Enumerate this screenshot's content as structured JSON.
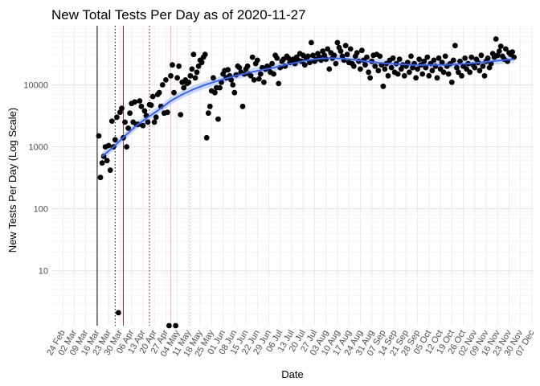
{
  "chart_data": {
    "type": "scatter",
    "title": "New Total Tests Per Day as of 2020-11-27",
    "xlabel": "Date",
    "ylabel": "New Tests Per Day (Log Scale)",
    "y_scale": "log10",
    "ylim": [
      1.3,
      90000
    ],
    "y_ticks": [
      {
        "value": 10,
        "label": "10"
      },
      {
        "value": 100,
        "label": "100"
      },
      {
        "value": 1000,
        "label": "1000"
      },
      {
        "value": 10000,
        "label": "10000"
      }
    ],
    "x_range": [
      "2020-02-17",
      "2020-12-08"
    ],
    "x_ticks": [
      {
        "date": "2020-02-24",
        "label": "24 Feb"
      },
      {
        "date": "2020-03-02",
        "label": "02 Mar"
      },
      {
        "date": "2020-03-09",
        "label": "09 Mar"
      },
      {
        "date": "2020-03-16",
        "label": "16 Mar"
      },
      {
        "date": "2020-03-23",
        "label": "23 Mar"
      },
      {
        "date": "2020-03-30",
        "label": "30 Mar"
      },
      {
        "date": "2020-04-06",
        "label": "06 Apr"
      },
      {
        "date": "2020-04-13",
        "label": "13 Apr"
      },
      {
        "date": "2020-04-20",
        "label": "20 Apr"
      },
      {
        "date": "2020-04-27",
        "label": "27 Apr"
      },
      {
        "date": "2020-05-04",
        "label": "04 May"
      },
      {
        "date": "2020-05-11",
        "label": "11 May"
      },
      {
        "date": "2020-05-18",
        "label": "18 May"
      },
      {
        "date": "2020-05-25",
        "label": "25 May"
      },
      {
        "date": "2020-06-01",
        "label": "01 Jun"
      },
      {
        "date": "2020-06-08",
        "label": "08 Jun"
      },
      {
        "date": "2020-06-15",
        "label": "15 Jun"
      },
      {
        "date": "2020-06-22",
        "label": "22 Jun"
      },
      {
        "date": "2020-06-29",
        "label": "29 Jun"
      },
      {
        "date": "2020-07-06",
        "label": "06 Jul"
      },
      {
        "date": "2020-07-13",
        "label": "13 Jul"
      },
      {
        "date": "2020-07-20",
        "label": "20 Jul"
      },
      {
        "date": "2020-07-27",
        "label": "27 Jul"
      },
      {
        "date": "2020-08-03",
        "label": "03 Aug"
      },
      {
        "date": "2020-08-10",
        "label": "10 Aug"
      },
      {
        "date": "2020-08-17",
        "label": "17 Aug"
      },
      {
        "date": "2020-08-24",
        "label": "24 Aug"
      },
      {
        "date": "2020-08-31",
        "label": "31 Aug"
      },
      {
        "date": "2020-09-07",
        "label": "07 Sep"
      },
      {
        "date": "2020-09-14",
        "label": "14 Sep"
      },
      {
        "date": "2020-09-21",
        "label": "21 Sep"
      },
      {
        "date": "2020-09-28",
        "label": "28 Sep"
      },
      {
        "date": "2020-10-05",
        "label": "05 Oct"
      },
      {
        "date": "2020-10-12",
        "label": "12 Oct"
      },
      {
        "date": "2020-10-19",
        "label": "19 Oct"
      },
      {
        "date": "2020-10-26",
        "label": "26 Oct"
      },
      {
        "date": "2020-11-02",
        "label": "02 Nov"
      },
      {
        "date": "2020-11-09",
        "label": "09 Nov"
      },
      {
        "date": "2020-11-16",
        "label": "16 Nov"
      },
      {
        "date": "2020-11-23",
        "label": "23 Nov"
      },
      {
        "date": "2020-11-30",
        "label": "30 Nov"
      },
      {
        "date": "2020-12-07",
        "label": "07 Dec"
      }
    ],
    "grid": true,
    "legend": "none",
    "vlines": [
      {
        "date": "2020-03-16",
        "style": "solid",
        "color": "#000000"
      },
      {
        "date": "2020-03-27",
        "style": "dotted",
        "color": "#000000"
      },
      {
        "date": "2020-04-01",
        "style": "solid",
        "color": "#b22222"
      },
      {
        "date": "2020-04-17",
        "style": "dotted",
        "color": "#8b0000"
      },
      {
        "date": "2020-04-30",
        "style": "solid",
        "color": "#ffb6c1"
      },
      {
        "date": "2020-05-12",
        "style": "dotted",
        "color": "#ff9999"
      }
    ],
    "points_color": "#000000",
    "smooth_color": "#3366ff",
    "smooth_band_color": "#a8b8f0",
    "smooth": [
      [
        "2020-03-19",
        700
      ],
      [
        "2020-03-26",
        1000
      ],
      [
        "2020-04-02",
        1500
      ],
      [
        "2020-04-09",
        2200
      ],
      [
        "2020-04-16",
        3000
      ],
      [
        "2020-04-23",
        4000
      ],
      [
        "2020-04-30",
        5500
      ],
      [
        "2020-05-07",
        7000
      ],
      [
        "2020-05-14",
        8500
      ],
      [
        "2020-05-21",
        10000
      ],
      [
        "2020-05-28",
        11500
      ],
      [
        "2020-06-04",
        13000
      ],
      [
        "2020-06-11",
        14500
      ],
      [
        "2020-06-18",
        16000
      ],
      [
        "2020-06-25",
        17500
      ],
      [
        "2020-07-02",
        19000
      ],
      [
        "2020-07-09",
        21000
      ],
      [
        "2020-07-16",
        23000
      ],
      [
        "2020-07-23",
        25000
      ],
      [
        "2020-07-30",
        26500
      ],
      [
        "2020-08-06",
        27000
      ],
      [
        "2020-08-13",
        26500
      ],
      [
        "2020-08-20",
        25500
      ],
      [
        "2020-08-27",
        24000
      ],
      [
        "2020-09-03",
        23000
      ],
      [
        "2020-09-10",
        22000
      ],
      [
        "2020-09-17",
        21500
      ],
      [
        "2020-09-24",
        21000
      ],
      [
        "2020-10-01",
        21000
      ],
      [
        "2020-10-08",
        21000
      ],
      [
        "2020-10-15",
        21000
      ],
      [
        "2020-10-22",
        21500
      ],
      [
        "2020-10-29",
        22000
      ],
      [
        "2020-11-05",
        23000
      ],
      [
        "2020-11-12",
        24000
      ],
      [
        "2020-11-19",
        25000
      ],
      [
        "2020-11-26",
        26000
      ]
    ],
    "points": [
      [
        "2020-03-17",
        1500
      ],
      [
        "2020-03-18",
        320
      ],
      [
        "2020-03-19",
        550
      ],
      [
        "2020-03-20",
        700
      ],
      [
        "2020-03-21",
        1000
      ],
      [
        "2020-03-22",
        600
      ],
      [
        "2020-03-23",
        1050
      ],
      [
        "2020-03-24",
        420
      ],
      [
        "2020-03-25",
        2600
      ],
      [
        "2020-03-26",
        1000
      ],
      [
        "2020-03-27",
        1300
      ],
      [
        "2020-03-28",
        3000
      ],
      [
        "2020-03-29",
        2.1
      ],
      [
        "2020-03-30",
        3600
      ],
      [
        "2020-03-31",
        4200
      ],
      [
        "2020-04-01",
        1400
      ],
      [
        "2020-04-02",
        2500
      ],
      [
        "2020-04-03",
        1000
      ],
      [
        "2020-04-04",
        2000
      ],
      [
        "2020-04-05",
        3500
      ],
      [
        "2020-04-06",
        5000
      ],
      [
        "2020-04-07",
        2500
      ],
      [
        "2020-04-08",
        5300
      ],
      [
        "2020-04-09",
        2300
      ],
      [
        "2020-04-10",
        2300
      ],
      [
        "2020-04-11",
        5500
      ],
      [
        "2020-04-12",
        4500
      ],
      [
        "2020-04-13",
        2200
      ],
      [
        "2020-04-14",
        3800
      ],
      [
        "2020-04-15",
        3200
      ],
      [
        "2020-04-16",
        2500
      ],
      [
        "2020-04-17",
        4800
      ],
      [
        "2020-04-18",
        4700
      ],
      [
        "2020-04-19",
        6500
      ],
      [
        "2020-04-20",
        2500
      ],
      [
        "2020-04-21",
        3000
      ],
      [
        "2020-04-22",
        7000
      ],
      [
        "2020-04-23",
        7500
      ],
      [
        "2020-04-24",
        4500
      ],
      [
        "2020-04-25",
        10000
      ],
      [
        "2020-04-26",
        3500
      ],
      [
        "2020-04-27",
        12000
      ],
      [
        "2020-04-28",
        3600
      ],
      [
        "2020-04-29",
        1.3
      ],
      [
        "2020-04-30",
        14000
      ],
      [
        "2020-05-01",
        21000
      ],
      [
        "2020-05-02",
        7500
      ],
      [
        "2020-05-03",
        1.3
      ],
      [
        "2020-05-04",
        13000
      ],
      [
        "2020-05-05",
        20000
      ],
      [
        "2020-05-06",
        3300
      ],
      [
        "2020-05-07",
        11000
      ],
      [
        "2020-05-08",
        9000
      ],
      [
        "2020-05-09",
        12000
      ],
      [
        "2020-05-10",
        10500
      ],
      [
        "2020-05-11",
        11000
      ],
      [
        "2020-05-12",
        14000
      ],
      [
        "2020-05-13",
        18000
      ],
      [
        "2020-05-14",
        31000
      ],
      [
        "2020-05-15",
        13000
      ],
      [
        "2020-05-16",
        16000
      ],
      [
        "2020-05-17",
        20000
      ],
      [
        "2020-05-18",
        25000
      ],
      [
        "2020-05-19",
        23000
      ],
      [
        "2020-05-20",
        28000
      ],
      [
        "2020-05-21",
        31000
      ],
      [
        "2020-05-22",
        1400
      ],
      [
        "2020-05-23",
        3500
      ],
      [
        "2020-05-24",
        4500
      ],
      [
        "2020-05-25",
        8000
      ],
      [
        "2020-05-26",
        13000
      ],
      [
        "2020-05-27",
        7500
      ],
      [
        "2020-05-28",
        9000
      ],
      [
        "2020-05-29",
        2800
      ],
      [
        "2020-05-30",
        9000
      ],
      [
        "2020-05-31",
        11000
      ],
      [
        "2020-06-01",
        15000
      ],
      [
        "2020-06-02",
        17000
      ],
      [
        "2020-06-03",
        13000
      ],
      [
        "2020-06-04",
        17500
      ],
      [
        "2020-06-05",
        14000
      ],
      [
        "2020-06-06",
        12000
      ],
      [
        "2020-06-07",
        10000
      ],
      [
        "2020-06-08",
        7500
      ],
      [
        "2020-06-09",
        14500
      ],
      [
        "2020-06-10",
        20000
      ],
      [
        "2020-06-11",
        19000
      ],
      [
        "2020-06-12",
        16000
      ],
      [
        "2020-06-13",
        4500
      ],
      [
        "2020-06-14",
        15000
      ],
      [
        "2020-06-15",
        18000
      ],
      [
        "2020-06-16",
        20000
      ],
      [
        "2020-06-17",
        15000
      ],
      [
        "2020-06-18",
        14000
      ],
      [
        "2020-06-19",
        28000
      ],
      [
        "2020-06-20",
        12000
      ],
      [
        "2020-06-21",
        22000
      ],
      [
        "2020-06-22",
        25000
      ],
      [
        "2020-06-23",
        12500
      ],
      [
        "2020-06-24",
        15000
      ],
      [
        "2020-06-25",
        19000
      ],
      [
        "2020-06-26",
        11000
      ],
      [
        "2020-06-27",
        18000
      ],
      [
        "2020-06-28",
        20000
      ],
      [
        "2020-06-29",
        19000
      ],
      [
        "2020-06-30",
        16000
      ],
      [
        "2020-07-01",
        22000
      ],
      [
        "2020-07-02",
        15000
      ],
      [
        "2020-07-03",
        30000
      ],
      [
        "2020-07-04",
        27000
      ],
      [
        "2020-07-05",
        10500
      ],
      [
        "2020-07-06",
        19000
      ],
      [
        "2020-07-07",
        24000
      ],
      [
        "2020-07-08",
        26000
      ],
      [
        "2020-07-09",
        20000
      ],
      [
        "2020-07-10",
        29000
      ],
      [
        "2020-07-11",
        27000
      ],
      [
        "2020-07-12",
        23000
      ],
      [
        "2020-07-13",
        25000
      ],
      [
        "2020-07-14",
        26000
      ],
      [
        "2020-07-15",
        22000
      ],
      [
        "2020-07-16",
        28000
      ],
      [
        "2020-07-17",
        25000
      ],
      [
        "2020-07-18",
        32000
      ],
      [
        "2020-07-19",
        24000
      ],
      [
        "2020-07-20",
        30000
      ],
      [
        "2020-07-21",
        21000
      ],
      [
        "2020-07-22",
        27000
      ],
      [
        "2020-07-23",
        29000
      ],
      [
        "2020-07-24",
        23000
      ],
      [
        "2020-07-25",
        48000
      ],
      [
        "2020-07-26",
        30000
      ],
      [
        "2020-07-27",
        24000
      ],
      [
        "2020-07-28",
        26000
      ],
      [
        "2020-07-29",
        32000
      ],
      [
        "2020-07-30",
        28000
      ],
      [
        "2020-07-31",
        25000
      ],
      [
        "2020-08-01",
        35000
      ],
      [
        "2020-08-02",
        30000
      ],
      [
        "2020-08-03",
        26000
      ],
      [
        "2020-08-04",
        38000
      ],
      [
        "2020-08-05",
        18000
      ],
      [
        "2020-08-06",
        33000
      ],
      [
        "2020-08-07",
        27000
      ],
      [
        "2020-08-08",
        30000
      ],
      [
        "2020-08-09",
        22000
      ],
      [
        "2020-08-10",
        48000
      ],
      [
        "2020-08-11",
        40000
      ],
      [
        "2020-08-12",
        35000
      ],
      [
        "2020-08-13",
        29000
      ],
      [
        "2020-08-14",
        25000
      ],
      [
        "2020-08-15",
        43000
      ],
      [
        "2020-08-16",
        31000
      ],
      [
        "2020-08-17",
        23000
      ],
      [
        "2020-08-18",
        38000
      ],
      [
        "2020-08-19",
        22000
      ],
      [
        "2020-08-20",
        20000
      ],
      [
        "2020-08-21",
        29000
      ],
      [
        "2020-08-22",
        33000
      ],
      [
        "2020-08-23",
        24000
      ],
      [
        "2020-08-24",
        18000
      ],
      [
        "2020-08-25",
        36000
      ],
      [
        "2020-08-26",
        25000
      ],
      [
        "2020-08-27",
        21000
      ],
      [
        "2020-08-28",
        28000
      ],
      [
        "2020-08-29",
        16000
      ],
      [
        "2020-08-30",
        13000
      ],
      [
        "2020-08-31",
        24000
      ],
      [
        "2020-09-01",
        30000
      ],
      [
        "2020-09-02",
        20000
      ],
      [
        "2020-09-03",
        31000
      ],
      [
        "2020-09-04",
        17000
      ],
      [
        "2020-09-05",
        29000
      ],
      [
        "2020-09-06",
        21000
      ],
      [
        "2020-09-07",
        9500
      ],
      [
        "2020-09-08",
        18000
      ],
      [
        "2020-09-09",
        22000
      ],
      [
        "2020-09-10",
        14000
      ],
      [
        "2020-09-11",
        25000
      ],
      [
        "2020-09-12",
        19000
      ],
      [
        "2020-09-13",
        27000
      ],
      [
        "2020-09-14",
        16000
      ],
      [
        "2020-09-15",
        22000
      ],
      [
        "2020-09-16",
        15000
      ],
      [
        "2020-09-17",
        26000
      ],
      [
        "2020-09-18",
        18000
      ],
      [
        "2020-09-19",
        21000
      ],
      [
        "2020-09-20",
        14000
      ],
      [
        "2020-09-21",
        20000
      ],
      [
        "2020-09-22",
        23000
      ],
      [
        "2020-09-23",
        16000
      ],
      [
        "2020-09-24",
        29000
      ],
      [
        "2020-09-25",
        19000
      ],
      [
        "2020-09-26",
        22000
      ],
      [
        "2020-09-27",
        13000
      ],
      [
        "2020-09-28",
        18000
      ],
      [
        "2020-09-29",
        26000
      ],
      [
        "2020-09-30",
        21000
      ],
      [
        "2020-10-01",
        15000
      ],
      [
        "2020-10-02",
        24000
      ],
      [
        "2020-10-03",
        19000
      ],
      [
        "2020-10-04",
        28000
      ],
      [
        "2020-10-05",
        14000
      ],
      [
        "2020-10-06",
        22000
      ],
      [
        "2020-10-07",
        17000
      ],
      [
        "2020-10-08",
        25000
      ],
      [
        "2020-10-09",
        20000
      ],
      [
        "2020-10-10",
        13000
      ],
      [
        "2020-10-11",
        27000
      ],
      [
        "2020-10-12",
        18000
      ],
      [
        "2020-10-13",
        23000
      ],
      [
        "2020-10-14",
        16000
      ],
      [
        "2020-10-15",
        29000
      ],
      [
        "2020-10-16",
        20000
      ],
      [
        "2020-10-17",
        15000
      ],
      [
        "2020-10-18",
        22000
      ],
      [
        "2020-10-19",
        11000
      ],
      [
        "2020-10-20",
        25000
      ],
      [
        "2020-10-21",
        43000
      ],
      [
        "2020-10-22",
        19000
      ],
      [
        "2020-10-23",
        16000
      ],
      [
        "2020-10-24",
        24000
      ],
      [
        "2020-10-25",
        14000
      ],
      [
        "2020-10-26",
        20000
      ],
      [
        "2020-10-27",
        27000
      ],
      [
        "2020-10-28",
        18000
      ],
      [
        "2020-10-29",
        22000
      ],
      [
        "2020-10-30",
        16000
      ],
      [
        "2020-10-31",
        28000
      ],
      [
        "2020-11-01",
        21000
      ],
      [
        "2020-11-02",
        19000
      ],
      [
        "2020-11-03",
        26000
      ],
      [
        "2020-11-04",
        23000
      ],
      [
        "2020-11-05",
        17000
      ],
      [
        "2020-11-06",
        30000
      ],
      [
        "2020-11-07",
        20000
      ],
      [
        "2020-11-08",
        14000
      ],
      [
        "2020-11-09",
        24000
      ],
      [
        "2020-11-10",
        27000
      ],
      [
        "2020-11-11",
        19000
      ],
      [
        "2020-11-12",
        22000
      ],
      [
        "2020-11-13",
        32000
      ],
      [
        "2020-11-14",
        28000
      ],
      [
        "2020-11-15",
        55000
      ],
      [
        "2020-11-16",
        30000
      ],
      [
        "2020-11-17",
        35000
      ],
      [
        "2020-11-18",
        42000
      ],
      [
        "2020-11-19",
        29000
      ],
      [
        "2020-11-20",
        26000
      ],
      [
        "2020-11-21",
        38000
      ],
      [
        "2020-11-22",
        24000
      ],
      [
        "2020-11-23",
        33000
      ],
      [
        "2020-11-24",
        31000
      ],
      [
        "2020-11-25",
        34000
      ],
      [
        "2020-11-26",
        28000
      ]
    ]
  }
}
